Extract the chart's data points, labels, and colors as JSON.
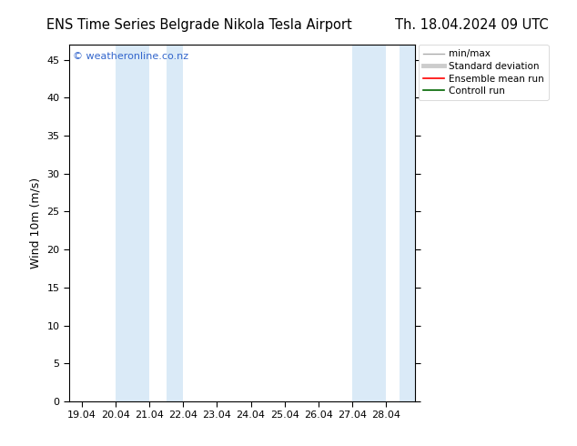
{
  "title_left": "ENS Time Series Belgrade Nikola Tesla Airport",
  "title_right": "Th. 18.04.2024 09 UTC",
  "ylabel": "Wind 10m (m/s)",
  "watermark": "© weatheronline.co.nz",
  "watermark_color": "#3366cc",
  "background_color": "#ffffff",
  "plot_bg_color": "#ffffff",
  "shade_color": "#daeaf7",
  "ylim": [
    0,
    47
  ],
  "yticks": [
    0,
    5,
    10,
    15,
    20,
    25,
    30,
    35,
    40,
    45
  ],
  "x_min": 18.625,
  "x_max": 28.875,
  "x_tick_positions": [
    19.0,
    20.0,
    21.0,
    22.0,
    23.0,
    24.0,
    25.0,
    26.0,
    27.0,
    28.0
  ],
  "x_tick_labels": [
    "19.04",
    "20.04",
    "21.04",
    "22.04",
    "23.04",
    "24.04",
    "25.04",
    "26.04",
    "27.04",
    "28.04"
  ],
  "shaded_bands": [
    [
      20.0,
      21.0
    ],
    [
      21.5,
      22.0
    ],
    [
      27.0,
      27.5
    ],
    [
      27.5,
      28.0
    ]
  ],
  "legend_entries": [
    {
      "label": "min/max",
      "color": "#aaaaaa",
      "lw": 1.0,
      "ls": "-"
    },
    {
      "label": "Standard deviation",
      "color": "#cccccc",
      "lw": 3.5,
      "ls": "-"
    },
    {
      "label": "Ensemble mean run",
      "color": "#ff0000",
      "lw": 1.2,
      "ls": "-"
    },
    {
      "label": "Controll run",
      "color": "#006600",
      "lw": 1.2,
      "ls": "-"
    }
  ],
  "title_fontsize": 10.5,
  "axis_fontsize": 9,
  "tick_fontsize": 8,
  "watermark_fontsize": 8,
  "legend_fontsize": 7.5
}
